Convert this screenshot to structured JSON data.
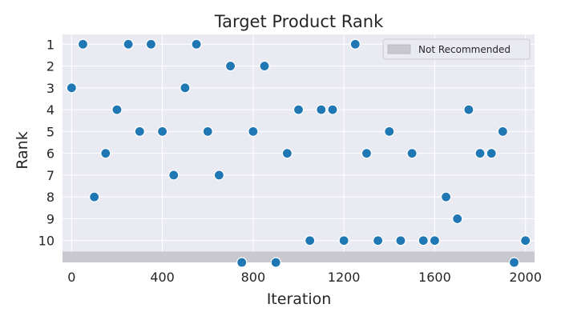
{
  "chart_data": {
    "type": "scatter",
    "title": "Target Product Rank",
    "xlabel": "Iteration",
    "ylabel": "Rank",
    "xlim": [
      -40,
      2040
    ],
    "ylim": [
      11.0,
      0.55
    ],
    "xticks": [
      0,
      400,
      800,
      1200,
      1600,
      2000
    ],
    "yticks": [
      1,
      2,
      3,
      4,
      5,
      6,
      7,
      8,
      9,
      10
    ],
    "grid": true,
    "legend": {
      "position": "top-right",
      "entries": [
        "Not Recommended"
      ]
    },
    "not_recommended_band": {
      "from_rank": 10.5,
      "to_rank": 11.0,
      "color": "#c9c8ce"
    },
    "not_recommended_rank": 11,
    "series": [
      {
        "color": "#1f77b4",
        "points": [
          {
            "x": 0,
            "y": 3
          },
          {
            "x": 50,
            "y": 1
          },
          {
            "x": 100,
            "y": 8
          },
          {
            "x": 150,
            "y": 6
          },
          {
            "x": 200,
            "y": 4
          },
          {
            "x": 250,
            "y": 1
          },
          {
            "x": 300,
            "y": 5
          },
          {
            "x": 350,
            "y": 1
          },
          {
            "x": 400,
            "y": 5
          },
          {
            "x": 450,
            "y": 7
          },
          {
            "x": 500,
            "y": 3
          },
          {
            "x": 550,
            "y": 1
          },
          {
            "x": 600,
            "y": 5
          },
          {
            "x": 650,
            "y": 7
          },
          {
            "x": 700,
            "y": 2
          },
          {
            "x": 750,
            "y": 11
          },
          {
            "x": 800,
            "y": 5
          },
          {
            "x": 850,
            "y": 2
          },
          {
            "x": 900,
            "y": 11
          },
          {
            "x": 950,
            "y": 6
          },
          {
            "x": 1000,
            "y": 4
          },
          {
            "x": 1050,
            "y": 10
          },
          {
            "x": 1100,
            "y": 4
          },
          {
            "x": 1150,
            "y": 4
          },
          {
            "x": 1200,
            "y": 10
          },
          {
            "x": 1250,
            "y": 1
          },
          {
            "x": 1300,
            "y": 6
          },
          {
            "x": 1350,
            "y": 10
          },
          {
            "x": 1400,
            "y": 5
          },
          {
            "x": 1450,
            "y": 10
          },
          {
            "x": 1500,
            "y": 6
          },
          {
            "x": 1550,
            "y": 10
          },
          {
            "x": 1600,
            "y": 10
          },
          {
            "x": 1650,
            "y": 8
          },
          {
            "x": 1700,
            "y": 9
          },
          {
            "x": 1750,
            "y": 4
          },
          {
            "x": 1800,
            "y": 6
          },
          {
            "x": 1850,
            "y": 6
          },
          {
            "x": 1900,
            "y": 5
          },
          {
            "x": 1950,
            "y": 11
          },
          {
            "x": 2000,
            "y": 10
          }
        ]
      }
    ]
  }
}
